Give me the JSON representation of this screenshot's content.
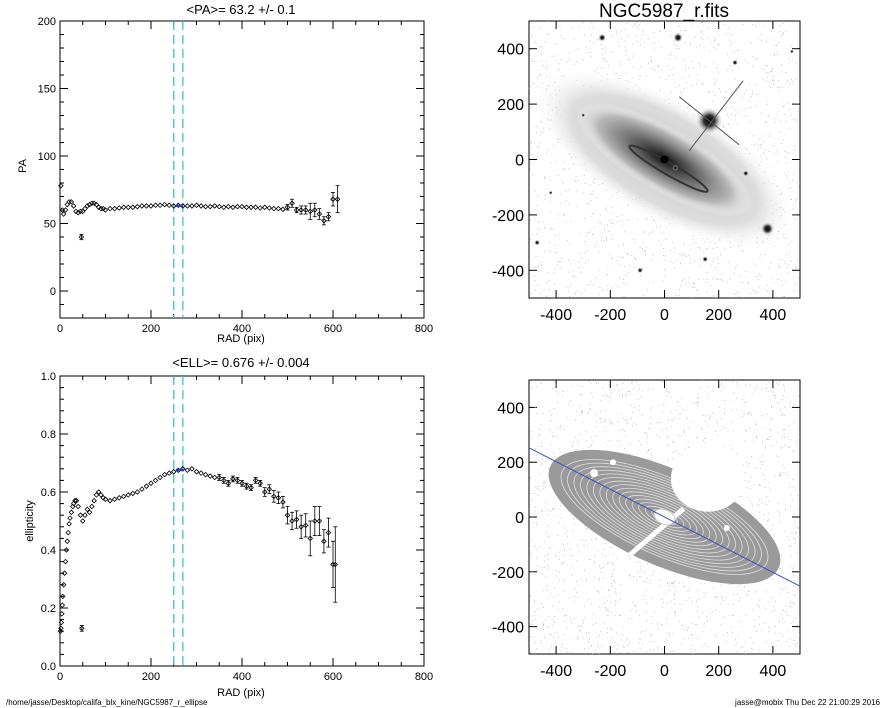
{
  "footer": {
    "path": "/home/jasse/Desktop/califa_blx_kine/NGC5987_r_ellipse",
    "stamp": "jasse@mobix  Thu Dec 22 21:00:29 2016"
  },
  "chart_data": [
    {
      "type": "scatter",
      "title": "<PA>=  63.2 +/-   0.1",
      "xlabel": "RAD (pix)",
      "ylabel": "PA",
      "xlim": [
        0,
        800
      ],
      "ylim": [
        -20,
        200
      ],
      "xticks": [
        0,
        200,
        400,
        600,
        800
      ],
      "yticks": [
        0,
        50,
        100,
        150,
        200
      ],
      "grid": false,
      "vlines": [
        250,
        270
      ],
      "vline_color": "#40c0c0",
      "highlight": {
        "range": [
          255,
          270
        ],
        "value": 63.2,
        "color": "#2040c0"
      },
      "series": [
        {
          "x": [
            2,
            5,
            8,
            12,
            16,
            20,
            25,
            30,
            35,
            40,
            45,
            50,
            55,
            60,
            65,
            70,
            75,
            80,
            85,
            90,
            95,
            100,
            110,
            120,
            130,
            140,
            150,
            160,
            170,
            180,
            190,
            200,
            210,
            220,
            230,
            240,
            250,
            260,
            270,
            280,
            290,
            300,
            310,
            320,
            330,
            340,
            350,
            360,
            370,
            380,
            390,
            400,
            410,
            420,
            430,
            440,
            450,
            460,
            470,
            480,
            490
          ],
          "y": [
            78,
            60,
            57,
            60,
            64,
            66,
            66,
            63,
            59,
            58,
            59,
            59,
            61,
            63,
            64,
            65,
            65,
            64,
            62,
            61,
            61,
            60,
            61,
            61,
            61.5,
            62,
            62,
            62,
            62.5,
            63,
            63,
            63,
            63.5,
            63.5,
            64,
            63.5,
            63,
            63.5,
            63,
            63,
            63,
            63.5,
            63,
            62.5,
            62.5,
            63,
            62.5,
            62,
            62.5,
            62,
            62.5,
            62.5,
            62,
            62,
            62,
            61.5,
            62,
            61.5,
            61,
            61,
            60.5
          ]
        },
        {
          "x": [
            47
          ],
          "y": [
            40
          ],
          "err": [
            2
          ]
        },
        {
          "x": [
            500,
            510,
            520,
            530,
            540,
            550,
            560,
            570,
            580,
            590,
            600,
            610
          ],
          "y": [
            62,
            65,
            60,
            60,
            60,
            59,
            60,
            57,
            52,
            55,
            68,
            68
          ],
          "err": [
            2,
            3,
            2,
            3,
            3,
            6,
            5,
            4,
            3,
            3,
            5,
            10
          ]
        }
      ]
    },
    {
      "type": "image",
      "title": "NGC5987_r.fits",
      "xlim": [
        -500,
        500
      ],
      "ylim": [
        -500,
        500
      ],
      "xticks": [
        -400,
        -200,
        0,
        200,
        400
      ],
      "yticks": [
        -400,
        -200,
        0,
        200,
        400
      ]
    },
    {
      "type": "scatter",
      "title": "<ELL>= 0.676 +/-  0.004",
      "xlabel": "RAD (pix)",
      "ylabel": "ellipticity",
      "xlim": [
        0,
        800
      ],
      "ylim": [
        0,
        1
      ],
      "xticks": [
        0,
        200,
        400,
        600,
        800
      ],
      "yticks": [
        "0.0",
        "0.2",
        "0.4",
        "0.6",
        "0.8",
        "1.0"
      ],
      "grid": false,
      "vlines": [
        250,
        270
      ],
      "vline_color": "#40c0c0",
      "highlight": {
        "range": [
          255,
          272
        ],
        "value": 0.676,
        "color": "#2040c0"
      },
      "series": [
        {
          "x": [
            1,
            2,
            3,
            4,
            5,
            6,
            8,
            10,
            12,
            14,
            16,
            18,
            20,
            22,
            25,
            28,
            30,
            33,
            36,
            40,
            45,
            50,
            55,
            60,
            65,
            70,
            75,
            80,
            85,
            90,
            95,
            100,
            110,
            120,
            130,
            140,
            150,
            160,
            170,
            180,
            190,
            200,
            210,
            220,
            230,
            240,
            250,
            260,
            270,
            280,
            290,
            300,
            310,
            320,
            330,
            340
          ],
          "y": [
            0.12,
            0.13,
            0.15,
            0.18,
            0.21,
            0.24,
            0.28,
            0.32,
            0.36,
            0.4,
            0.43,
            0.46,
            0.49,
            0.51,
            0.53,
            0.55,
            0.56,
            0.57,
            0.57,
            0.55,
            0.52,
            0.5,
            0.52,
            0.54,
            0.53,
            0.55,
            0.57,
            0.59,
            0.6,
            0.59,
            0.58,
            0.575,
            0.57,
            0.575,
            0.58,
            0.585,
            0.59,
            0.595,
            0.6,
            0.61,
            0.62,
            0.63,
            0.64,
            0.65,
            0.66,
            0.665,
            0.67,
            0.675,
            0.68,
            0.675,
            0.68,
            0.67,
            0.665,
            0.66,
            0.655,
            0.65
          ]
        },
        {
          "x": [
            48
          ],
          "y": [
            0.13
          ],
          "err": [
            0.01
          ]
        },
        {
          "x": [
            350,
            360,
            370,
            380,
            390,
            400,
            410,
            420,
            430,
            440,
            450,
            460,
            470,
            480,
            490,
            500,
            510,
            520,
            530,
            540,
            550,
            560,
            570,
            580,
            590,
            600,
            605
          ],
          "y": [
            0.65,
            0.64,
            0.63,
            0.645,
            0.64,
            0.63,
            0.62,
            0.615,
            0.64,
            0.63,
            0.6,
            0.61,
            0.585,
            0.58,
            0.565,
            0.52,
            0.5,
            0.505,
            0.48,
            0.485,
            0.44,
            0.5,
            0.5,
            0.43,
            0.46,
            0.35,
            0.35
          ],
          "err": [
            0.01,
            0.01,
            0.01,
            0.01,
            0.01,
            0.01,
            0.01,
            0.01,
            0.01,
            0.01,
            0.015,
            0.015,
            0.02,
            0.02,
            0.02,
            0.03,
            0.03,
            0.03,
            0.04,
            0.04,
            0.06,
            0.05,
            0.05,
            0.04,
            0.05,
            0.08,
            0.13
          ]
        }
      ]
    },
    {
      "type": "image",
      "title": "",
      "xlim": [
        -500,
        500
      ],
      "ylim": [
        -500,
        500
      ],
      "xticks": [
        -400,
        -200,
        0,
        200,
        400
      ],
      "yticks": [
        -400,
        -200,
        0,
        200,
        400
      ],
      "overlay_line": {
        "pa_deg": 63.2,
        "color": "#4050c0"
      }
    }
  ]
}
